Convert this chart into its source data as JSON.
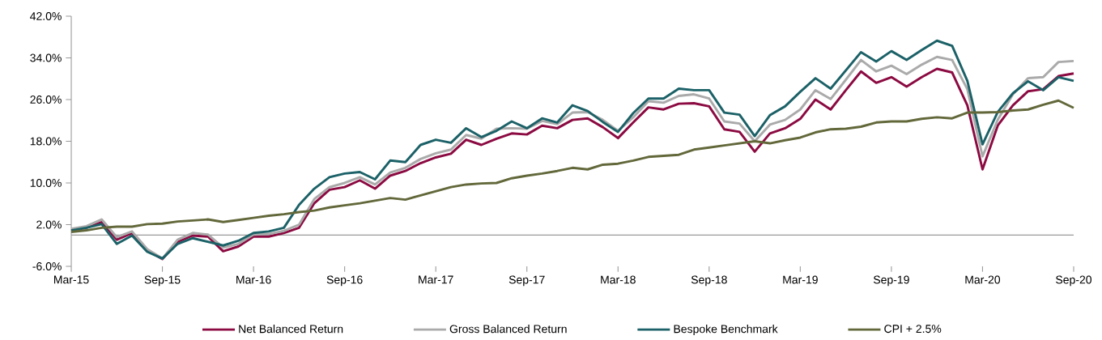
{
  "chart_data": {
    "type": "line",
    "categories": [
      "Mar-15",
      null,
      null,
      null,
      null,
      null,
      "Sep-15",
      null,
      null,
      null,
      null,
      null,
      "Mar-16",
      null,
      null,
      null,
      null,
      null,
      "Sep-16",
      null,
      null,
      null,
      null,
      null,
      "Mar-17",
      null,
      null,
      null,
      null,
      null,
      "Sep-17",
      null,
      null,
      null,
      null,
      null,
      "Mar-18",
      null,
      null,
      null,
      null,
      null,
      "Sep-18",
      null,
      null,
      null,
      null,
      null,
      "Mar-19",
      null,
      null,
      null,
      null,
      null,
      "Sep-19",
      null,
      null,
      null,
      null,
      null,
      "Mar-20",
      null,
      null,
      null,
      null,
      null,
      "Sep-20"
    ],
    "series": [
      {
        "name": "Net Balanced Return",
        "color": "#8b0a41",
        "values": [
          0.9,
          1.4,
          2.5,
          -0.9,
          0.4,
          -2.9,
          -4.6,
          -1.3,
          -0.1,
          -0.3,
          -3.1,
          -2.2,
          -0.3,
          -0.3,
          0.4,
          1.4,
          6.1,
          8.7,
          9.2,
          10.5,
          8.9,
          11.4,
          12.3,
          13.8,
          14.9,
          15.6,
          18.3,
          17.3,
          18.5,
          19.5,
          19.3,
          21.0,
          20.5,
          22.1,
          22.4,
          20.7,
          18.6,
          21.6,
          24.5,
          24.1,
          25.2,
          25.3,
          24.7,
          20.3,
          19.8,
          16.0,
          19.5,
          20.5,
          22.3,
          26.0,
          24.1,
          27.8,
          31.4,
          29.2,
          30.3,
          28.5,
          30.3,
          31.9,
          31.2,
          24.9,
          12.6,
          21.0,
          24.9,
          27.6,
          28.0,
          30.5,
          31.0
        ]
      },
      {
        "name": "Gross Balanced Return",
        "color": "#aaaaaa",
        "values": [
          1.2,
          1.7,
          3.0,
          -0.4,
          0.7,
          -2.7,
          -4.5,
          -0.9,
          0.4,
          0.1,
          -2.4,
          -1.7,
          0.1,
          0.2,
          0.8,
          2.0,
          6.9,
          9.2,
          10.0,
          11.1,
          9.7,
          12.0,
          12.9,
          14.6,
          15.7,
          16.4,
          19.2,
          18.5,
          20.4,
          20.5,
          20.4,
          21.9,
          21.3,
          23.5,
          23.6,
          22.1,
          20.0,
          22.6,
          25.7,
          25.4,
          26.7,
          27.0,
          26.2,
          21.8,
          21.4,
          18.0,
          21.2,
          22.1,
          24.1,
          27.8,
          26.1,
          29.8,
          33.6,
          31.4,
          32.5,
          30.9,
          32.7,
          34.2,
          33.6,
          28.0,
          15.1,
          22.1,
          27.0,
          30.1,
          30.3,
          33.2,
          33.4
        ]
      },
      {
        "name": "Bespoke Benchmark",
        "color": "#1b6167",
        "values": [
          0.9,
          1.4,
          2.1,
          -1.7,
          -0.1,
          -3.2,
          -4.5,
          -1.7,
          -0.6,
          -1.3,
          -2.0,
          -1.1,
          0.4,
          0.7,
          1.4,
          5.8,
          8.9,
          11.1,
          11.8,
          12.1,
          10.7,
          14.3,
          14.0,
          17.3,
          18.3,
          17.7,
          20.5,
          18.8,
          20.0,
          21.8,
          20.5,
          22.4,
          21.6,
          24.9,
          23.8,
          21.7,
          19.8,
          23.4,
          26.2,
          26.2,
          28.1,
          27.8,
          27.8,
          23.5,
          23.1,
          19.0,
          23.0,
          24.7,
          27.5,
          30.1,
          28.1,
          31.6,
          35.1,
          33.3,
          35.3,
          33.6,
          35.5,
          37.3,
          36.3,
          29.6,
          17.4,
          23.6,
          27.2,
          29.5,
          27.8,
          30.3,
          29.6
        ]
      },
      {
        "name": "CPI + 2.5%",
        "color": "#63683a",
        "values": [
          0.6,
          0.9,
          1.4,
          1.6,
          1.6,
          2.1,
          2.2,
          2.6,
          2.8,
          3.0,
          2.5,
          2.9,
          3.3,
          3.7,
          4.0,
          4.4,
          4.7,
          5.3,
          5.7,
          6.1,
          6.6,
          7.1,
          6.8,
          7.6,
          8.4,
          9.2,
          9.7,
          9.9,
          10.0,
          10.9,
          11.4,
          11.8,
          12.3,
          12.9,
          12.6,
          13.5,
          13.7,
          14.3,
          15.0,
          15.2,
          15.4,
          16.4,
          16.8,
          17.2,
          17.6,
          18.0,
          17.6,
          18.2,
          18.7,
          19.7,
          20.3,
          20.4,
          20.8,
          21.6,
          21.8,
          21.8,
          22.3,
          22.6,
          22.4,
          23.5,
          23.5,
          23.6,
          23.9,
          24.1,
          25.0,
          25.8,
          24.4
        ]
      }
    ],
    "ylim": [
      -6,
      42
    ],
    "yticks": [
      {
        "value": -6,
        "label": "-6.0%"
      },
      {
        "value": 2,
        "label": "2.0%"
      },
      {
        "value": 10,
        "label": "10.0%"
      },
      {
        "value": 18,
        "label": "18.0%"
      },
      {
        "value": 26,
        "label": "26.0%"
      },
      {
        "value": 34,
        "label": "34.0%"
      },
      {
        "value": 42,
        "label": "42.0%"
      }
    ],
    "legend": "bottom",
    "line_style": "solid",
    "marker": "none"
  }
}
